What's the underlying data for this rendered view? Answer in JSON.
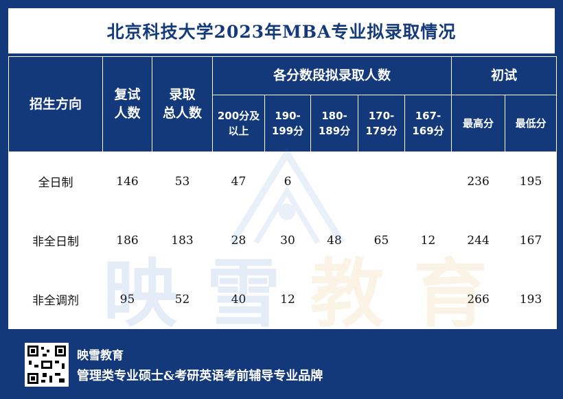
{
  "title": "北京科技大学2023年MBA专业拟录取情况",
  "header": {
    "direction": "招生方向",
    "retest_line1": "复试",
    "retest_line2": "人数",
    "admit_line1": "录取",
    "admit_line2": "总人数",
    "score_group": "各分数段拟录取人数",
    "prelim_group": "初试",
    "bands": [
      {
        "line1": "200分及",
        "line2": "以上"
      },
      {
        "line1": "190-",
        "line2": "199分"
      },
      {
        "line1": "180-",
        "line2": "189分"
      },
      {
        "line1": "170-",
        "line2": "179分"
      },
      {
        "line1": "167-",
        "line2": "169分"
      }
    ],
    "max_score": "最高分",
    "min_score": "最低分"
  },
  "rows": [
    {
      "name": "全日制",
      "retest": "146",
      "admit": "53",
      "b1": "47",
      "b2": "6",
      "b3": "",
      "b4": "",
      "b5": "",
      "max": "236",
      "min": "195"
    },
    {
      "name": "非全日制",
      "retest": "186",
      "admit": "183",
      "b1": "28",
      "b2": "30",
      "b3": "48",
      "b4": "65",
      "b5": "12",
      "max": "244",
      "min": "167"
    },
    {
      "name": "非全调剂",
      "retest": "95",
      "admit": "52",
      "b1": "40",
      "b2": "12",
      "b3": "",
      "b4": "",
      "b5": "",
      "max": "266",
      "min": "193"
    }
  ],
  "watermark": [
    "映",
    "雪",
    "教",
    "育"
  ],
  "footer": {
    "brand": "映雪教育",
    "slogan": "管理类专业硕士&考研英语考前辅导专业品牌",
    "qr_icon": "qr-code-icon"
  },
  "colors": {
    "navy": "#14397a",
    "wm_blue": "#3a74c9",
    "wm_orange": "#e8a84a"
  }
}
